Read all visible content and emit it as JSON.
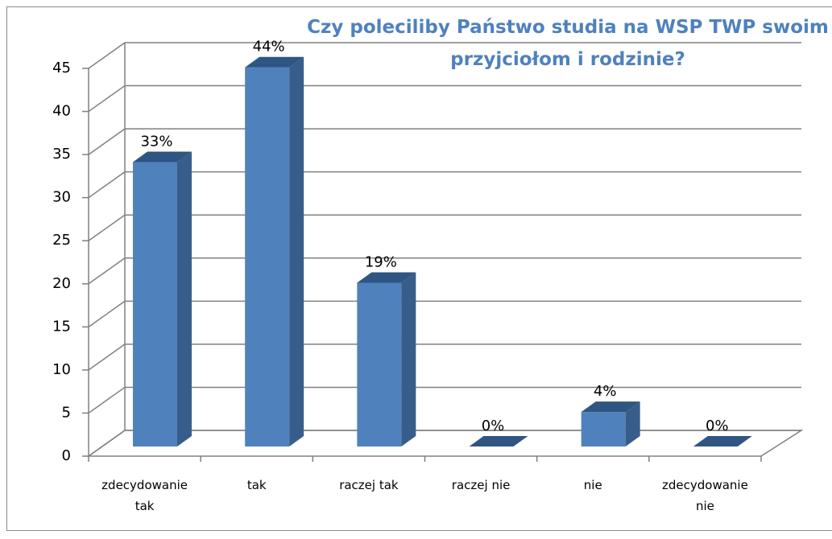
{
  "chart_data": {
    "type": "bar3d",
    "title": "Czy poleciliby Państwo studia na WSP TWP swoim przyjciołom i rodzinie?",
    "categories": [
      "zdecydowanie tak",
      "tak",
      "raczej tak",
      "raczej nie",
      "nie",
      "zdecydowanie nie"
    ],
    "values": [
      33,
      44,
      19,
      0,
      4,
      0
    ],
    "value_labels": [
      "33%",
      "44%",
      "19%",
      "0%",
      "4%",
      "0%"
    ],
    "color": "#4f81bd",
    "ylim": [
      0,
      45
    ],
    "yticks": [
      0,
      5,
      10,
      15,
      20,
      25,
      30,
      35,
      40,
      45
    ],
    "grid": true
  }
}
